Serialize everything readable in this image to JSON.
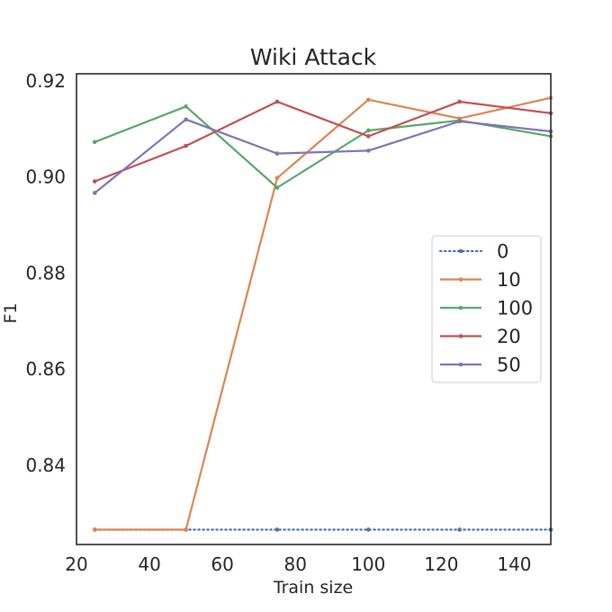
{
  "chart_data": {
    "type": "line",
    "title": "Wiki Attack",
    "xlabel": "Train size",
    "ylabel": "F1",
    "xlim": [
      20,
      150
    ],
    "ylim": [
      0.8235,
      0.9215
    ],
    "xticks": [
      20,
      40,
      60,
      80,
      100,
      120,
      140
    ],
    "yticks": [
      0.84,
      0.86,
      0.88,
      0.9,
      0.92
    ],
    "ytick_labels": [
      "0.84",
      "0.86",
      "0.88",
      "0.90",
      "0.92"
    ],
    "grid": false,
    "legend_position": "center-right",
    "x": [
      25,
      50,
      75,
      100,
      125,
      150
    ],
    "series": [
      {
        "name": "0",
        "color": "#4c72b0",
        "dash": "dotted",
        "values": [
          0.8266,
          0.8266,
          0.8266,
          0.8266,
          0.8266,
          0.8266
        ]
      },
      {
        "name": "10",
        "color": "#dd8452",
        "dash": "solid",
        "values": [
          0.8266,
          0.8266,
          0.8998,
          0.9161,
          0.9122,
          0.9165
        ]
      },
      {
        "name": "100",
        "color": "#55a868",
        "dash": "solid",
        "values": [
          0.9073,
          0.9147,
          0.8978,
          0.9097,
          0.9118,
          0.9085
        ]
      },
      {
        "name": "20",
        "color": "#c44e52",
        "dash": "solid",
        "values": [
          0.8991,
          0.9065,
          0.9157,
          0.9085,
          0.9157,
          0.9133
        ]
      },
      {
        "name": "50",
        "color": "#8172b3",
        "dash": "solid",
        "values": [
          0.8967,
          0.912,
          0.9049,
          0.9055,
          0.9116,
          0.9095
        ]
      }
    ]
  }
}
